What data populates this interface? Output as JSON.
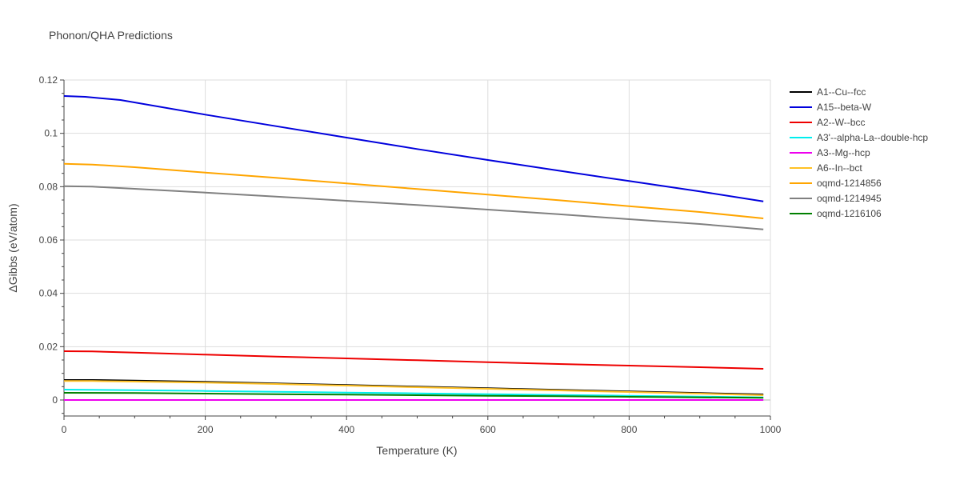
{
  "chart_data": {
    "type": "line",
    "title": "Phonon/QHA Predictions",
    "xlabel": "Temperature (K)",
    "ylabel": "ΔGibbs (eV/atom)",
    "xlim": [
      0,
      1000
    ],
    "ylim": [
      -0.006,
      0.12
    ],
    "x_ticks": [
      0,
      200,
      400,
      600,
      800,
      1000
    ],
    "y_ticks": [
      0,
      0.02,
      0.04,
      0.06,
      0.08,
      0.1,
      0.12
    ],
    "x_tick_labels": [
      "0",
      "200",
      "400",
      "600",
      "800",
      "1000"
    ],
    "y_tick_labels": [
      "0",
      "0.02",
      "0.04",
      "0.06",
      "0.08",
      "0.1",
      "0.12"
    ],
    "grid": true,
    "legend_position": "top-right",
    "series": [
      {
        "name": "A1--Cu--fcc",
        "color": "#000000",
        "x": [
          0,
          40,
          100,
          200,
          300,
          400,
          500,
          600,
          700,
          800,
          900,
          990
        ],
        "y": [
          0.0075,
          0.0075,
          0.0073,
          0.0068,
          0.0062,
          0.0056,
          0.005,
          0.0044,
          0.0038,
          0.0032,
          0.0026,
          0.0021
        ]
      },
      {
        "name": "A15--beta-W",
        "color": "#0000dd",
        "x": [
          0,
          30,
          80,
          200,
          300,
          400,
          500,
          600,
          700,
          800,
          900,
          990
        ],
        "y": [
          0.114,
          0.1137,
          0.1125,
          0.107,
          0.1027,
          0.0984,
          0.0941,
          0.09,
          0.086,
          0.0821,
          0.0782,
          0.0745
        ]
      },
      {
        "name": "A2--W--bcc",
        "color": "#ee0000",
        "x": [
          0,
          40,
          100,
          200,
          300,
          400,
          500,
          600,
          700,
          800,
          900,
          990
        ],
        "y": [
          0.0183,
          0.0182,
          0.0178,
          0.017,
          0.0163,
          0.0156,
          0.0149,
          0.0142,
          0.0135,
          0.0129,
          0.0123,
          0.0117
        ]
      },
      {
        "name": "A3'--alpha-La--double-hcp",
        "color": "#00eeee",
        "x": [
          0,
          100,
          200,
          300,
          400,
          500,
          600,
          700,
          800,
          900,
          990
        ],
        "y": [
          0.0039,
          0.0037,
          0.0034,
          0.0031,
          0.0028,
          0.0025,
          0.0022,
          0.0019,
          0.0016,
          0.0013,
          0.001
        ]
      },
      {
        "name": "A3--Mg--hcp",
        "color": "#ee00ee",
        "x": [
          0,
          200,
          400,
          600,
          800,
          990
        ],
        "y": [
          0.0,
          0.0,
          0.0,
          0.0,
          0.0,
          0.0
        ]
      },
      {
        "name": "A6--In--bct",
        "color": "#ffc125",
        "x": [
          0,
          40,
          100,
          200,
          300,
          400,
          500,
          600,
          700,
          800,
          900,
          990
        ],
        "y": [
          0.0071,
          0.0071,
          0.0069,
          0.0065,
          0.006,
          0.0054,
          0.0048,
          0.0042,
          0.0036,
          0.003,
          0.0024,
          0.0018
        ]
      },
      {
        "name": "oqmd-1214856",
        "color": "#ffa500",
        "x": [
          0,
          40,
          100,
          200,
          300,
          400,
          500,
          600,
          700,
          800,
          900,
          990
        ],
        "y": [
          0.0886,
          0.0883,
          0.0873,
          0.0853,
          0.0833,
          0.0812,
          0.0791,
          0.077,
          0.0749,
          0.0727,
          0.0705,
          0.0681
        ]
      },
      {
        "name": "oqmd-1214945",
        "color": "#808080",
        "x": [
          0,
          40,
          100,
          200,
          300,
          400,
          500,
          600,
          700,
          800,
          900,
          990
        ],
        "y": [
          0.0802,
          0.08,
          0.0792,
          0.0778,
          0.0763,
          0.0747,
          0.0731,
          0.0714,
          0.0697,
          0.0678,
          0.066,
          0.064
        ]
      },
      {
        "name": "oqmd-1216106",
        "color": "#008000",
        "x": [
          0,
          100,
          200,
          300,
          400,
          500,
          600,
          700,
          800,
          900,
          990
        ],
        "y": [
          0.0027,
          0.0026,
          0.0024,
          0.0022,
          0.002,
          0.0018,
          0.0016,
          0.0014,
          0.0012,
          0.001,
          0.0008
        ]
      }
    ]
  }
}
